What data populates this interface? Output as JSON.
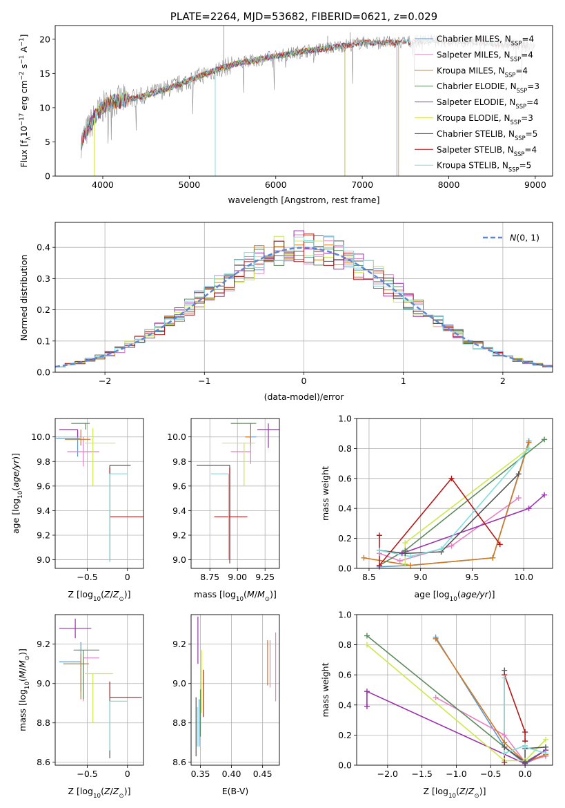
{
  "colors": {
    "chabrier_miles": "#5b9bd5",
    "salpeter_miles": "#e87fc4",
    "kroupa_miles": "#d4781c",
    "chabrier_elodie": "#5a8a5a",
    "salpeter_elodie": "#9b2fae",
    "kroupa_elodie": "#cce84a",
    "chabrier_stelib": "#555555",
    "salpeter_stelib": "#b41616",
    "kroupa_stelib": "#80dede",
    "normal_curve": "#5b86d6",
    "grid": "#b0b0b0"
  },
  "chart_data": [
    {
      "id": "spectrum",
      "type": "line",
      "title": "PLATE=2264, MJD=53682, FIBERID=0621, z=0.029",
      "xlabel": "wavelength [Angstrom, rest frame]",
      "ylabel": "Flux [f$_\\lambda$10$^{-17}$ erg cm$^{-2}$ s$^{-1}$ A$^{-1}$]",
      "xlim": [
        3450,
        9200
      ],
      "ylim": [
        0,
        22
      ],
      "xticks": [
        4000,
        5000,
        6000,
        7000,
        8000,
        9000
      ],
      "yticks": [
        0,
        5,
        10,
        15,
        20
      ],
      "legend_position": "right",
      "legend": [
        {
          "pre": "Chabrier MILES, N",
          "sub": "SSP",
          "post": "=4",
          "color_key": "chabrier_miles"
        },
        {
          "pre": "Salpeter MILES, N",
          "sub": "SSP",
          "post": "=4",
          "color_key": "salpeter_miles"
        },
        {
          "pre": "Kroupa MILES, N",
          "sub": "SSP",
          "post": "=4",
          "color_key": "kroupa_miles"
        },
        {
          "pre": "Chabrier ELODIE, N",
          "sub": "SSP",
          "post": "=3",
          "color_key": "chabrier_elodie"
        },
        {
          "pre": "Salpeter ELODIE, N",
          "sub": "SSP",
          "post": "=4",
          "color_key": "salpeter_elodie"
        },
        {
          "pre": "Kroupa ELODIE, N",
          "sub": "SSP",
          "post": "=3",
          "color_key": "kroupa_elodie"
        },
        {
          "pre": "Chabrier STELIB, N",
          "sub": "SSP",
          "post": "=5",
          "color_key": "chabrier_stelib"
        },
        {
          "pre": "Salpeter STELIB, N",
          "sub": "SSP",
          "post": "=4",
          "color_key": "salpeter_stelib"
        },
        {
          "pre": "Kroupa STELIB, N",
          "sub": "SSP",
          "post": "=5",
          "color_key": "kroupa_stelib"
        }
      ],
      "data_trend": {
        "x": [
          3750,
          3900,
          4000,
          4100,
          4300,
          4500,
          4800,
          5000,
          5200,
          5500,
          5800,
          6000,
          6300,
          6600,
          7000,
          7400,
          7800,
          8200,
          8600,
          9000
        ],
        "y": [
          5,
          8.5,
          10,
          10.8,
          11.2,
          11.8,
          13,
          14,
          15,
          16.3,
          17,
          17.5,
          18.2,
          18.7,
          19.5,
          19.5,
          19.8,
          19.6,
          19.3,
          19.0
        ]
      },
      "model_extents": {
        "chabrier_miles": [
          3750,
          7400
        ],
        "salpeter_miles": [
          3750,
          7400
        ],
        "kroupa_miles": [
          3750,
          7420
        ],
        "chabrier_elodie": [
          3750,
          6800
        ],
        "salpeter_elodie": [
          3750,
          6800
        ],
        "kroupa_elodie": [
          3900,
          6800
        ],
        "chabrier_stelib": [
          3750,
          8900
        ],
        "salpeter_stelib": [
          3750,
          8900
        ],
        "kroupa_stelib": [
          3750,
          8900
        ]
      }
    },
    {
      "id": "residuals",
      "type": "line",
      "xlabel": "(data-model)/error",
      "ylabel": "Normed distribution",
      "xlim": [
        -2.5,
        2.5
      ],
      "ylim": [
        0,
        0.48
      ],
      "xticks": [
        -2,
        -1,
        0,
        1,
        2
      ],
      "yticks": [
        0.0,
        0.1,
        0.2,
        0.3,
        0.4
      ],
      "legend": [
        {
          "label": "N(0,1)",
          "color_key": "normal_curve"
        }
      ],
      "legend_position": "top-right",
      "normal_curve": {
        "mean": 0,
        "sigma": 1
      },
      "hist_bin_width": 0.1
    },
    {
      "id": "z_vs_age",
      "type": "scatter",
      "xlabel": "Z [log10(Z/Z⊙)]",
      "ylabel": "age [log10(age/yr)]",
      "xlim": [
        -0.9,
        0.2
      ],
      "ylim": [
        8.93,
        10.15
      ],
      "xticks": [
        -0.5,
        0.0
      ],
      "yticks": [
        9.0,
        9.2,
        9.4,
        9.6,
        9.8,
        10.0
      ],
      "points": [
        {
          "key": "chabrier_miles",
          "x": -0.62,
          "y": 9.99,
          "xerr": [
            0.27,
            0.03
          ],
          "yerr": [
            0.15,
            0.05
          ]
        },
        {
          "key": "salpeter_miles",
          "x": -0.55,
          "y": 9.88,
          "xerr": [
            0.2,
            0.2
          ],
          "yerr": [
            0.12,
            0.12
          ]
        },
        {
          "key": "kroupa_miles",
          "x": -0.58,
          "y": 9.98,
          "xerr": [
            0.2,
            0.12
          ],
          "yerr": [
            0.05,
            0.08
          ]
        },
        {
          "key": "chabrier_elodie",
          "x": -0.52,
          "y": 10.11,
          "xerr": [
            0.18,
            0.05
          ],
          "yerr": [
            0.05,
            0.0
          ]
        },
        {
          "key": "salpeter_elodie",
          "x": -0.62,
          "y": 10.06,
          "xerr": [
            0.23,
            0.0
          ],
          "yerr": [
            0.06,
            0.0
          ]
        },
        {
          "key": "kroupa_elodie",
          "x": -0.43,
          "y": 9.95,
          "xerr": [
            0.1,
            0.28
          ],
          "yerr": [
            0.35,
            0.12
          ]
        },
        {
          "key": "chabrier_stelib",
          "x": -0.22,
          "y": 9.77,
          "xerr": [
            0.0,
            0.26
          ],
          "yerr": [
            0.78,
            0.0
          ]
        },
        {
          "key": "salpeter_stelib",
          "x": -0.22,
          "y": 9.35,
          "xerr": [
            0.0,
            0.42
          ],
          "yerr": [
            0.35,
            0.4
          ]
        },
        {
          "key": "kroupa_stelib",
          "x": -0.22,
          "y": 9.7,
          "xerr": [
            0.0,
            0.22
          ],
          "yerr": [
            0.72,
            0.0
          ]
        }
      ]
    },
    {
      "id": "mass_vs_age",
      "type": "scatter",
      "xlabel": "mass [log10(M/M⊙)]",
      "ylabel": "",
      "xlim": [
        8.58,
        9.38
      ],
      "ylim": [
        8.93,
        10.15
      ],
      "xticks": [
        8.75,
        9.0,
        9.25
      ],
      "yticks": [
        9.0,
        9.2,
        9.4,
        9.6,
        9.8,
        10.0
      ],
      "points": [
        {
          "key": "chabrier_miles",
          "x": 9.12,
          "y": 10.0,
          "xerr": [
            0.05,
            0.05
          ],
          "yerr": [
            0.08,
            0.06
          ]
        },
        {
          "key": "salpeter_miles",
          "x": 9.12,
          "y": 9.88,
          "xerr": [
            0.18,
            0.0
          ],
          "yerr": [
            0.1,
            0.1
          ]
        },
        {
          "key": "kroupa_miles",
          "x": 9.12,
          "y": 10.0,
          "xerr": [
            0.05,
            0.0
          ],
          "yerr": [
            0.06,
            0.06
          ]
        },
        {
          "key": "chabrier_elodie",
          "x": 9.12,
          "y": 10.11,
          "xerr": [
            0.18,
            0.05
          ],
          "yerr": [
            0.05,
            0.0
          ]
        },
        {
          "key": "salpeter_elodie",
          "x": 9.28,
          "y": 10.06,
          "xerr": [
            0.1,
            0.1
          ],
          "yerr": [
            0.15,
            0.05
          ]
        },
        {
          "key": "kroupa_elodie",
          "x": 9.06,
          "y": 9.95,
          "xerr": [
            0.2,
            0.1
          ],
          "yerr": [
            0.35,
            0.0
          ]
        },
        {
          "key": "chabrier_stelib",
          "x": 8.93,
          "y": 9.77,
          "xerr": [
            0.3,
            0.0
          ],
          "yerr": [
            0.8,
            0.0
          ]
        },
        {
          "key": "salpeter_stelib",
          "x": 8.93,
          "y": 9.35,
          "xerr": [
            0.14,
            0.16
          ],
          "yerr": [
            0.35,
            0.4
          ]
        },
        {
          "key": "kroupa_stelib",
          "x": 8.92,
          "y": 9.7,
          "xerr": [
            0.16,
            0.0
          ],
          "yerr": [
            0.7,
            0.0
          ]
        }
      ]
    },
    {
      "id": "weight_vs_age",
      "type": "line",
      "xlabel": "age [log10(age/yr)]",
      "ylabel": "mass weight",
      "xlim": [
        8.38,
        10.28
      ],
      "ylim": [
        0,
        1.0
      ],
      "xticks": [
        8.5,
        9.0,
        9.5,
        10.0
      ],
      "yticks": [
        0.0,
        0.2,
        0.4,
        0.6,
        0.8,
        1.0
      ],
      "series": [
        {
          "key": "chabrier_miles",
          "x": [
            8.6,
            8.9,
            9.7,
            10.05
          ],
          "y": [
            0.01,
            0.02,
            0.07,
            0.85
          ]
        },
        {
          "key": "salpeter_miles",
          "x": [
            8.6,
            8.8,
            9.3,
            9.95
          ],
          "y": [
            0.1,
            0.05,
            0.15,
            0.47
          ]
        },
        {
          "key": "kroupa_miles",
          "x": [
            8.45,
            8.9,
            9.7,
            10.05
          ],
          "y": [
            0.07,
            0.02,
            0.07,
            0.84
          ]
        },
        {
          "key": "chabrier_elodie",
          "x": [
            8.6,
            8.85,
            10.2
          ],
          "y": [
            0.02,
            0.12,
            0.86
          ]
        },
        {
          "key": "salpeter_elodie",
          "x": [
            8.82,
            10.05,
            10.2
          ],
          "y": [
            0.1,
            0.4,
            0.49
          ]
        },
        {
          "key": "kroupa_elodie",
          "x": [
            8.85,
            8.85,
            10.05
          ],
          "y": [
            0.03,
            0.17,
            0.8
          ]
        },
        {
          "key": "chabrier_stelib",
          "x": [
            8.6,
            8.85,
            9.2,
            9.95
          ],
          "y": [
            0.12,
            0.1,
            0.11,
            0.63
          ]
        },
        {
          "key": "salpeter_stelib",
          "x": [
            8.6,
            8.6,
            9.3,
            9.77
          ],
          "y": [
            0.22,
            0.02,
            0.6,
            0.16
          ]
        },
        {
          "key": "kroupa_stelib",
          "x": [
            8.6,
            8.9,
            9.2,
            10.05
          ],
          "y": [
            0.12,
            0.08,
            0.13,
            0.8
          ]
        }
      ]
    },
    {
      "id": "z_vs_mass",
      "type": "scatter",
      "xlabel": "Z [log10(Z/Z⊙)]",
      "ylabel": "mass [log10(M/M⊙)]",
      "xlim": [
        -0.9,
        0.2
      ],
      "ylim": [
        8.585,
        9.35
      ],
      "xticks": [
        -0.5,
        0.0
      ],
      "yticks": [
        8.6,
        8.8,
        9.0,
        9.2
      ],
      "points": [
        {
          "key": "chabrier_miles",
          "x": -0.58,
          "y": 9.11,
          "xerr": [
            0.27,
            0.0
          ],
          "yerr": [
            0.15,
            0.1
          ]
        },
        {
          "key": "salpeter_miles",
          "x": -0.55,
          "y": 9.13,
          "xerr": [
            0.0,
            0.2
          ],
          "yerr": [
            0.22,
            0.0
          ]
        },
        {
          "key": "kroupa_miles",
          "x": -0.58,
          "y": 9.1,
          "xerr": [
            0.22,
            0.1
          ],
          "yerr": [
            0.18,
            0.05
          ]
        },
        {
          "key": "chabrier_elodie",
          "x": -0.55,
          "y": 9.17,
          "xerr": [
            0.12,
            0.2
          ],
          "yerr": [
            0.25,
            0.0
          ]
        },
        {
          "key": "salpeter_elodie",
          "x": -0.65,
          "y": 9.28,
          "xerr": [
            0.2,
            0.2
          ],
          "yerr": [
            0.05,
            0.05
          ]
        },
        {
          "key": "kroupa_elodie",
          "x": -0.43,
          "y": 9.05,
          "xerr": [
            0.1,
            0.25
          ],
          "yerr": [
            0.25,
            0.0
          ]
        },
        {
          "key": "chabrier_stelib",
          "x": -0.22,
          "y": 8.93,
          "xerr": [
            0.0,
            0.0
          ],
          "yerr": [
            0.31,
            0.0
          ]
        },
        {
          "key": "salpeter_stelib",
          "x": -0.22,
          "y": 8.93,
          "xerr": [
            0.0,
            0.4
          ],
          "yerr": [
            0.0,
            0.08
          ]
        },
        {
          "key": "kroupa_stelib",
          "x": -0.22,
          "y": 8.91,
          "xerr": [
            0.0,
            0.22
          ],
          "yerr": [
            0.25,
            0.0
          ]
        }
      ]
    },
    {
      "id": "ebv_vs_mass",
      "type": "scatter",
      "xlabel": "E(B-V)",
      "ylabel": "",
      "xlim": [
        0.335,
        0.477
      ],
      "ylim": [
        8.585,
        9.35
      ],
      "xticks": [
        0.35,
        0.4,
        0.45
      ],
      "yticks": [
        8.6,
        8.8,
        9.0,
        9.2
      ],
      "points": [
        {
          "key": "chabrier_miles",
          "x": 0.348,
          "y": 8.8,
          "xerr": [
            0,
            0
          ],
          "yerr": [
            0.12,
            0.12
          ]
        },
        {
          "key": "salpeter_miles",
          "x": 0.462,
          "y": 9.1,
          "xerr": [
            0,
            0
          ],
          "yerr": [
            0.12,
            0.12
          ]
        },
        {
          "key": "kroupa_miles",
          "x": 0.458,
          "y": 9.1,
          "xerr": [
            0,
            0
          ],
          "yerr": [
            0.11,
            0.12
          ]
        },
        {
          "key": "chabrier_elodie",
          "x": 0.35,
          "y": 8.85,
          "xerr": [
            0,
            0
          ],
          "yerr": [
            0.12,
            0.12
          ]
        },
        {
          "key": "salpeter_elodie",
          "x": 0.346,
          "y": 9.22,
          "xerr": [
            0,
            0
          ],
          "yerr": [
            0.12,
            0.12
          ]
        },
        {
          "key": "kroupa_elodie",
          "x": 0.352,
          "y": 9.05,
          "xerr": [
            0,
            0
          ],
          "yerr": [
            0.2,
            0.12
          ]
        },
        {
          "key": "chabrier_stelib",
          "x": 0.343,
          "y": 8.78,
          "xerr": [
            0,
            0
          ],
          "yerr": [
            0.15,
            0.15
          ]
        },
        {
          "key": "salpeter_stelib",
          "x": 0.355,
          "y": 8.95,
          "xerr": [
            0,
            0
          ],
          "yerr": [
            0.12,
            0.12
          ]
        },
        {
          "key": "kroupa_stelib",
          "x": 0.345,
          "y": 8.78,
          "xerr": [
            0,
            0
          ],
          "yerr": [
            0.1,
            0.1
          ]
        },
        {
          "key": "salpeter_miles",
          "x": 0.471,
          "y": 9.08,
          "xerr": [
            0,
            0
          ],
          "yerr": [
            0.17,
            0.18
          ]
        }
      ]
    },
    {
      "id": "weight_vs_z",
      "type": "line",
      "xlabel": "Z [log10(Z/Z⊙)]",
      "ylabel": "mass weight",
      "xlim": [
        -2.45,
        0.4
      ],
      "ylim": [
        0,
        1.0
      ],
      "xticks": [
        -2.0,
        -1.5,
        -1.0,
        -0.5,
        0.0
      ],
      "yticks": [
        0.0,
        0.2,
        0.4,
        0.6,
        0.8,
        1.0
      ],
      "series": [
        {
          "key": "chabrier_miles",
          "x": [
            -1.3,
            -0.3,
            0.0,
            0.3
          ],
          "y": [
            0.85,
            0.12,
            0.01,
            0.07
          ]
        },
        {
          "key": "salpeter_miles",
          "x": [
            -1.3,
            -0.3,
            0.0,
            0.3
          ],
          "y": [
            0.45,
            0.2,
            0.02,
            0.06
          ]
        },
        {
          "key": "kroupa_miles",
          "x": [
            -1.3,
            -0.3,
            0.0,
            0.3
          ],
          "y": [
            0.84,
            0.15,
            0.02,
            0.07
          ]
        },
        {
          "key": "chabrier_elodie",
          "x": [
            -2.3,
            -0.3,
            0.0,
            0.3
          ],
          "y": [
            0.86,
            0.12,
            0.02,
            0.1
          ]
        },
        {
          "key": "salpeter_elodie",
          "x": [
            -2.3,
            -2.3,
            0.0,
            0.3
          ],
          "y": [
            0.39,
            0.49,
            0.01,
            0.1
          ]
        },
        {
          "key": "kroupa_elodie",
          "x": [
            -2.3,
            -0.3,
            0.0,
            0.3
          ],
          "y": [
            0.8,
            0.03,
            0.03,
            0.17
          ]
        },
        {
          "key": "chabrier_stelib",
          "x": [
            -0.3,
            -0.3,
            0.0,
            0.0,
            0.3
          ],
          "y": [
            0.63,
            0.12,
            0.02,
            0.11,
            0.12
          ]
        },
        {
          "key": "salpeter_stelib",
          "x": [
            -0.3,
            -0.3,
            0.0,
            0.0
          ],
          "y": [
            0.02,
            0.6,
            0.22,
            0.16
          ]
        },
        {
          "key": "kroupa_stelib",
          "x": [
            -0.3,
            -0.3,
            0.0,
            0.0,
            0.3
          ],
          "y": [
            0.58,
            0.08,
            0.13,
            0.12,
            0.08
          ]
        }
      ]
    }
  ]
}
